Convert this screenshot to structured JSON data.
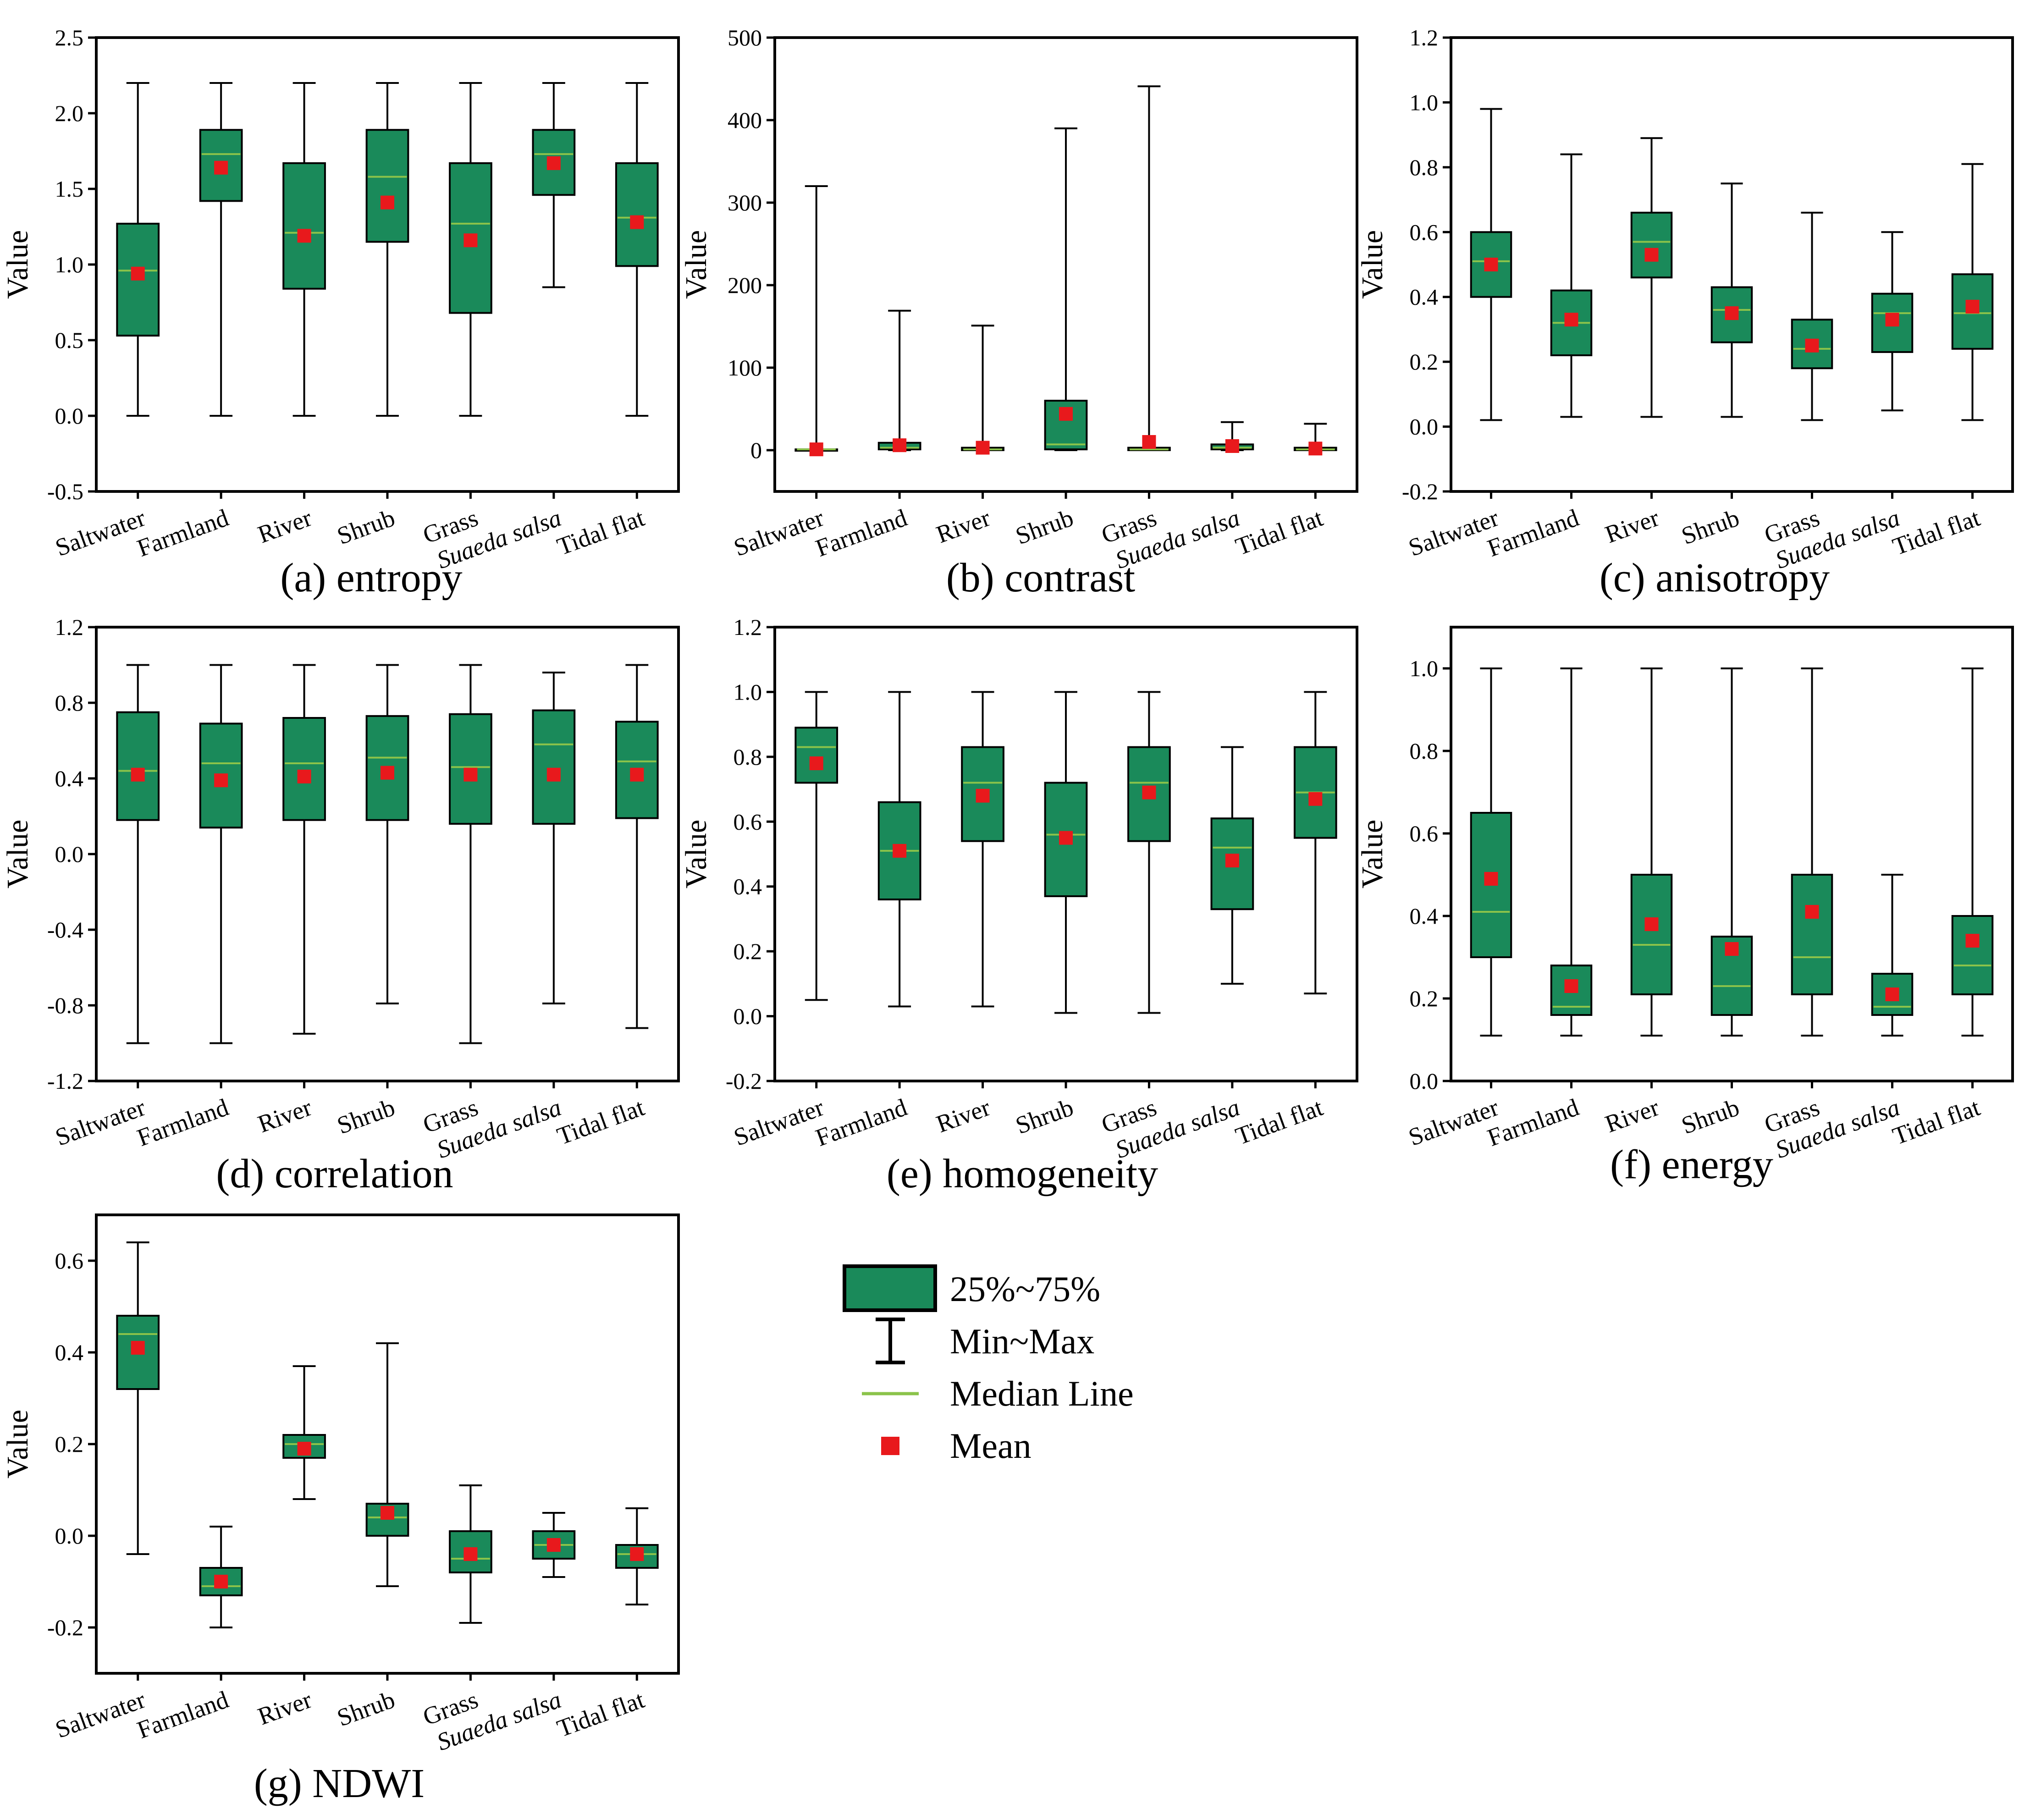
{
  "colors": {
    "box": "#1a8a5a",
    "median": "#8bc34a",
    "mean": "#e8191c",
    "axis": "#000000"
  },
  "legend": {
    "box_label": "25%~75%",
    "whisker_label": "Min~Max",
    "median_label": "Median Line",
    "mean_label": "Mean"
  },
  "chart_data": [
    {
      "id": "a",
      "type": "box",
      "caption": "(a) entropy",
      "ylabel": "Value",
      "categories": [
        "Saltwater",
        "Farmland",
        "River",
        "Shrub",
        "Grass",
        "Suaeda salsa",
        "Tidal flat"
      ],
      "italic_categories": [
        "Suaeda salsa"
      ],
      "ylim": [
        -0.5,
        2.5
      ],
      "yticks": [
        -0.5,
        0.0,
        0.5,
        1.0,
        1.5,
        2.0,
        2.5
      ],
      "ytick_labels": [
        "-0.5",
        "0.0",
        "0.5",
        "1.0",
        "1.5",
        "2.0",
        "2.5"
      ],
      "series": [
        {
          "min": 0.0,
          "q1": 0.53,
          "median": 0.96,
          "q3": 1.27,
          "max": 2.2,
          "mean": 0.94
        },
        {
          "min": 0.0,
          "q1": 1.42,
          "median": 1.73,
          "q3": 1.89,
          "max": 2.2,
          "mean": 1.64
        },
        {
          "min": 0.0,
          "q1": 0.84,
          "median": 1.21,
          "q3": 1.67,
          "max": 2.2,
          "mean": 1.19
        },
        {
          "min": 0.0,
          "q1": 1.15,
          "median": 1.58,
          "q3": 1.89,
          "max": 2.2,
          "mean": 1.41
        },
        {
          "min": 0.0,
          "q1": 0.68,
          "median": 1.27,
          "q3": 1.67,
          "max": 2.2,
          "mean": 1.16
        },
        {
          "min": 0.85,
          "q1": 1.46,
          "median": 1.73,
          "q3": 1.89,
          "max": 2.2,
          "mean": 1.67
        },
        {
          "min": 0.0,
          "q1": 0.99,
          "median": 1.31,
          "q3": 1.67,
          "max": 2.2,
          "mean": 1.28
        }
      ]
    },
    {
      "id": "b",
      "type": "box",
      "caption": "(b) contrast",
      "ylabel": "Value",
      "categories": [
        "Saltwater",
        "Farmland",
        "River",
        "Shrub",
        "Grass",
        "Suaeda salsa",
        "Tidal flat"
      ],
      "italic_categories": [
        "Suaeda salsa"
      ],
      "ylim": [
        -50,
        500
      ],
      "yticks": [
        0,
        100,
        200,
        300,
        400,
        500
      ],
      "ytick_labels": [
        "0",
        "100",
        "200",
        "300",
        "400",
        "500"
      ],
      "series": [
        {
          "min": 0,
          "q1": 0,
          "median": 1,
          "q3": 1,
          "max": 320,
          "mean": 1
        },
        {
          "min": 0,
          "q1": 1,
          "median": 3,
          "q3": 9,
          "max": 169,
          "mean": 6
        },
        {
          "min": 0,
          "q1": 0,
          "median": 1,
          "q3": 3,
          "max": 151,
          "mean": 3
        },
        {
          "min": 0,
          "q1": 1,
          "median": 7,
          "q3": 60,
          "max": 390,
          "mean": 44
        },
        {
          "min": 0,
          "q1": 0,
          "median": 1,
          "q3": 3,
          "max": 441,
          "mean": 10
        },
        {
          "min": 0,
          "q1": 1,
          "median": 3,
          "q3": 7,
          "max": 34,
          "mean": 5
        },
        {
          "min": 0,
          "q1": 0,
          "median": 1,
          "q3": 3,
          "max": 32,
          "mean": 2
        }
      ]
    },
    {
      "id": "c",
      "type": "box",
      "caption": "(c) anisotropy",
      "ylabel": "Value",
      "categories": [
        "Saltwater",
        "Farmland",
        "River",
        "Shrub",
        "Grass",
        "Suaeda salsa",
        "Tidal flat"
      ],
      "italic_categories": [
        "Suaeda salsa"
      ],
      "ylim": [
        -0.2,
        1.2
      ],
      "yticks": [
        -0.2,
        0.0,
        0.2,
        0.4,
        0.6,
        0.8,
        1.0,
        1.2
      ],
      "ytick_labels": [
        "-0.2",
        "0.0",
        "0.2",
        "0.4",
        "0.6",
        "0.8",
        "1.0",
        "1.2"
      ],
      "series": [
        {
          "min": 0.02,
          "q1": 0.4,
          "median": 0.51,
          "q3": 0.6,
          "max": 0.98,
          "mean": 0.5
        },
        {
          "min": 0.03,
          "q1": 0.22,
          "median": 0.32,
          "q3": 0.42,
          "max": 0.84,
          "mean": 0.33
        },
        {
          "min": 0.03,
          "q1": 0.46,
          "median": 0.57,
          "q3": 0.66,
          "max": 0.89,
          "mean": 0.53
        },
        {
          "min": 0.03,
          "q1": 0.26,
          "median": 0.36,
          "q3": 0.43,
          "max": 0.75,
          "mean": 0.35
        },
        {
          "min": 0.02,
          "q1": 0.18,
          "median": 0.24,
          "q3": 0.33,
          "max": 0.66,
          "mean": 0.25
        },
        {
          "min": 0.05,
          "q1": 0.23,
          "median": 0.35,
          "q3": 0.41,
          "max": 0.6,
          "mean": 0.33
        },
        {
          "min": 0.02,
          "q1": 0.24,
          "median": 0.35,
          "q3": 0.47,
          "max": 0.81,
          "mean": 0.37
        }
      ]
    },
    {
      "id": "d",
      "type": "box",
      "caption": "(d) correlation",
      "ylabel": "Value",
      "categories": [
        "Saltwater",
        "Farmland",
        "River",
        "Shrub",
        "Grass",
        "Suaeda salsa",
        "Tidal flat"
      ],
      "italic_categories": [
        "Suaeda salsa"
      ],
      "ylim": [
        -1.2,
        1.2
      ],
      "yticks": [
        -1.2,
        -0.8,
        -0.4,
        0.0,
        0.4,
        0.8,
        1.2
      ],
      "ytick_labels": [
        "-1.2",
        "-0.8",
        "-0.4",
        "0.0",
        "0.4",
        "0.8",
        "1.2"
      ],
      "series": [
        {
          "min": -1.0,
          "q1": 0.18,
          "median": 0.44,
          "q3": 0.75,
          "max": 1.0,
          "mean": 0.42
        },
        {
          "min": -1.0,
          "q1": 0.14,
          "median": 0.48,
          "q3": 0.69,
          "max": 1.0,
          "mean": 0.39
        },
        {
          "min": -0.95,
          "q1": 0.18,
          "median": 0.48,
          "q3": 0.72,
          "max": 1.0,
          "mean": 0.41
        },
        {
          "min": -0.79,
          "q1": 0.18,
          "median": 0.51,
          "q3": 0.73,
          "max": 1.0,
          "mean": 0.43
        },
        {
          "min": -1.0,
          "q1": 0.16,
          "median": 0.46,
          "q3": 0.74,
          "max": 1.0,
          "mean": 0.42
        },
        {
          "min": -0.79,
          "q1": 0.16,
          "median": 0.58,
          "q3": 0.76,
          "max": 0.96,
          "mean": 0.42
        },
        {
          "min": -0.92,
          "q1": 0.19,
          "median": 0.49,
          "q3": 0.7,
          "max": 1.0,
          "mean": 0.42
        }
      ]
    },
    {
      "id": "e",
      "type": "box",
      "caption": "(e) homogeneity",
      "ylabel": "Value",
      "categories": [
        "Saltwater",
        "Farmland",
        "River",
        "Shrub",
        "Grass",
        "Suaeda salsa",
        "Tidal flat"
      ],
      "italic_categories": [
        "Suaeda salsa"
      ],
      "ylim": [
        -0.2,
        1.2
      ],
      "yticks": [
        -0.2,
        0.0,
        0.2,
        0.4,
        0.6,
        0.8,
        1.0,
        1.2
      ],
      "ytick_labels": [
        "-0.2",
        "0.0",
        "0.2",
        "0.4",
        "0.6",
        "0.8",
        "1.0",
        "1.2"
      ],
      "series": [
        {
          "min": 0.05,
          "q1": 0.72,
          "median": 0.83,
          "q3": 0.89,
          "max": 1.0,
          "mean": 0.78
        },
        {
          "min": 0.03,
          "q1": 0.36,
          "median": 0.51,
          "q3": 0.66,
          "max": 1.0,
          "mean": 0.51
        },
        {
          "min": 0.03,
          "q1": 0.54,
          "median": 0.72,
          "q3": 0.83,
          "max": 1.0,
          "mean": 0.68
        },
        {
          "min": 0.01,
          "q1": 0.37,
          "median": 0.56,
          "q3": 0.72,
          "max": 1.0,
          "mean": 0.55
        },
        {
          "min": 0.01,
          "q1": 0.54,
          "median": 0.72,
          "q3": 0.83,
          "max": 1.0,
          "mean": 0.69
        },
        {
          "min": 0.1,
          "q1": 0.33,
          "median": 0.52,
          "q3": 0.61,
          "max": 0.83,
          "mean": 0.48
        },
        {
          "min": 0.07,
          "q1": 0.55,
          "median": 0.69,
          "q3": 0.83,
          "max": 1.0,
          "mean": 0.67
        }
      ]
    },
    {
      "id": "f",
      "type": "box",
      "caption": "(f) energy",
      "ylabel": "Value",
      "categories": [
        "Saltwater",
        "Farmland",
        "River",
        "Shrub",
        "Grass",
        "Suaeda salsa",
        "Tidal flat"
      ],
      "italic_categories": [
        "Suaeda salsa"
      ],
      "ylim": [
        0.0,
        1.1
      ],
      "yticks": [
        0.0,
        0.2,
        0.4,
        0.6,
        0.8,
        1.0
      ],
      "ytick_labels": [
        "0.0",
        "0.2",
        "0.4",
        "0.6",
        "0.8",
        "1.0"
      ],
      "series": [
        {
          "min": 0.11,
          "q1": 0.3,
          "median": 0.41,
          "q3": 0.65,
          "max": 1.0,
          "mean": 0.49
        },
        {
          "min": 0.11,
          "q1": 0.16,
          "median": 0.18,
          "q3": 0.28,
          "max": 1.0,
          "mean": 0.23
        },
        {
          "min": 0.11,
          "q1": 0.21,
          "median": 0.33,
          "q3": 0.5,
          "max": 1.0,
          "mean": 0.38
        },
        {
          "min": 0.11,
          "q1": 0.16,
          "median": 0.23,
          "q3": 0.35,
          "max": 1.0,
          "mean": 0.32
        },
        {
          "min": 0.11,
          "q1": 0.21,
          "median": 0.3,
          "q3": 0.5,
          "max": 1.0,
          "mean": 0.41
        },
        {
          "min": 0.11,
          "q1": 0.16,
          "median": 0.18,
          "q3": 0.26,
          "max": 0.5,
          "mean": 0.21
        },
        {
          "min": 0.11,
          "q1": 0.21,
          "median": 0.28,
          "q3": 0.4,
          "max": 1.0,
          "mean": 0.34
        }
      ]
    },
    {
      "id": "g",
      "type": "box",
      "caption": "(g) NDWI",
      "ylabel": "Value",
      "categories": [
        "Saltwater",
        "Farmland",
        "River",
        "Shrub",
        "Grass",
        "Suaeda salsa",
        "Tidal flat"
      ],
      "italic_categories": [
        "Suaeda salsa"
      ],
      "ylim": [
        -0.3,
        0.7
      ],
      "yticks": [
        -0.2,
        0.0,
        0.2,
        0.4,
        0.6
      ],
      "ytick_labels": [
        "-0.2",
        "0.0",
        "0.2",
        "0.4",
        "0.6"
      ],
      "series": [
        {
          "min": -0.04,
          "q1": 0.32,
          "median": 0.44,
          "q3": 0.48,
          "max": 0.64,
          "mean": 0.41
        },
        {
          "min": -0.2,
          "q1": -0.13,
          "median": -0.11,
          "q3": -0.07,
          "max": 0.02,
          "mean": -0.1
        },
        {
          "min": 0.08,
          "q1": 0.17,
          "median": 0.2,
          "q3": 0.22,
          "max": 0.37,
          "mean": 0.19
        },
        {
          "min": -0.11,
          "q1": 0.0,
          "median": 0.04,
          "q3": 0.07,
          "max": 0.42,
          "mean": 0.05
        },
        {
          "min": -0.19,
          "q1": -0.08,
          "median": -0.05,
          "q3": 0.01,
          "max": 0.11,
          "mean": -0.04
        },
        {
          "min": -0.09,
          "q1": -0.05,
          "median": -0.02,
          "q3": 0.01,
          "max": 0.05,
          "mean": -0.02
        },
        {
          "min": -0.15,
          "q1": -0.07,
          "median": -0.04,
          "q3": -0.02,
          "max": 0.06,
          "mean": -0.04
        }
      ]
    }
  ]
}
